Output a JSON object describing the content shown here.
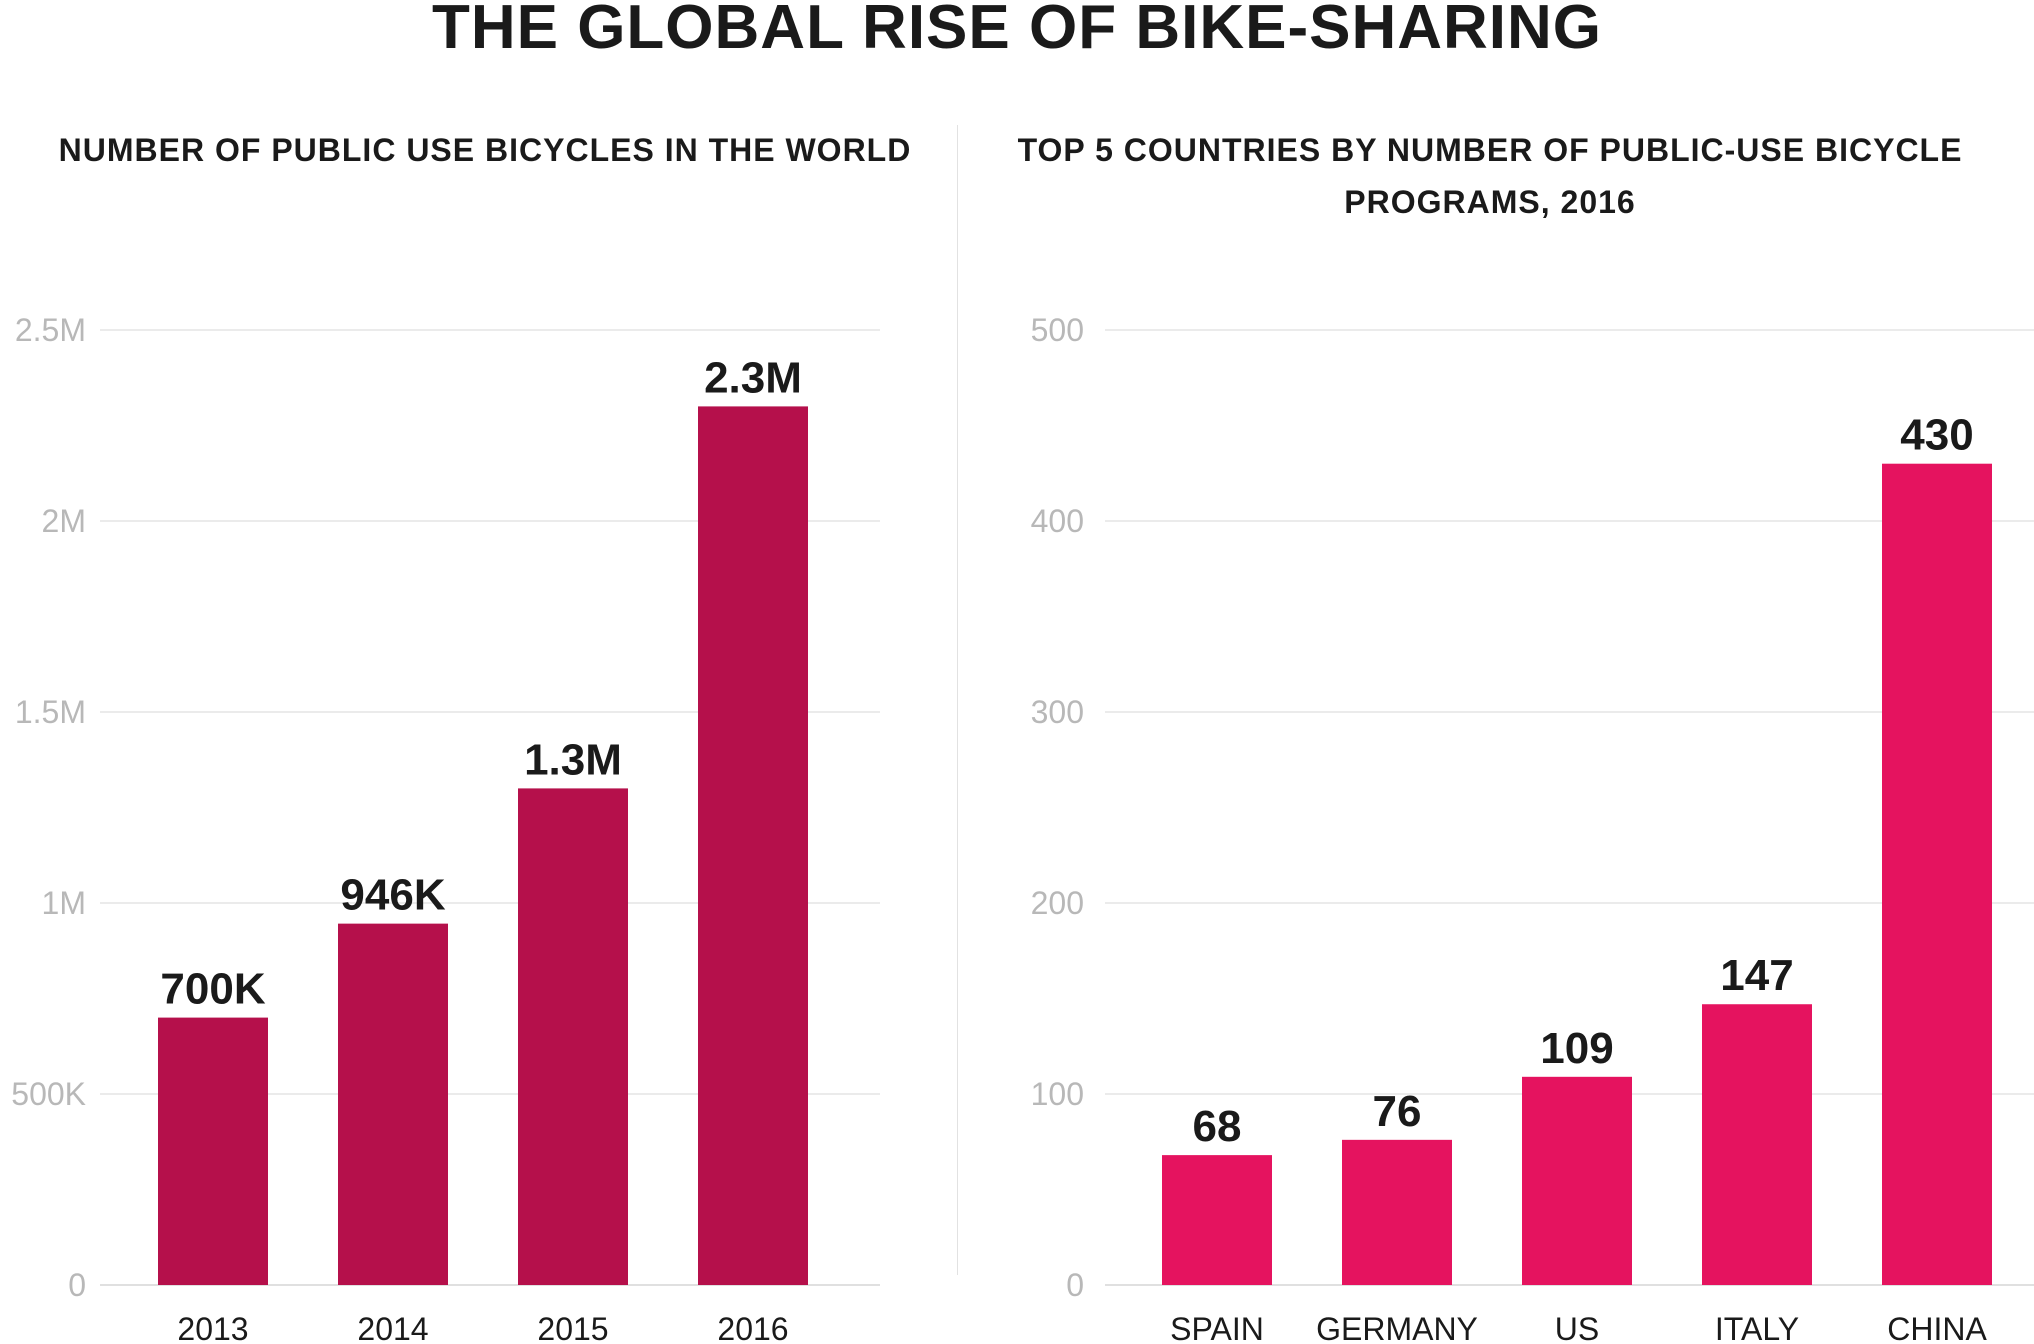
{
  "title": "THE GLOBAL RISE OF BIKE-SHARING",
  "chart_data": [
    {
      "type": "bar",
      "title": "NUMBER OF PUBLIC USE BICYCLES IN THE WORLD",
      "categories": [
        "2013",
        "2014",
        "2015",
        "2016"
      ],
      "values": [
        700000,
        946000,
        1300000,
        2300000
      ],
      "value_labels": [
        "700K",
        "946K",
        "1.3M",
        "2.3M"
      ],
      "ylim": [
        0,
        2500000
      ],
      "yticks": [
        0,
        500000,
        1000000,
        1500000,
        2000000,
        2500000
      ],
      "ytick_labels": [
        "0",
        "500K",
        "1M",
        "1.5M",
        "2M",
        "2.5M"
      ],
      "xlabel": "",
      "ylabel": "",
      "grid": true,
      "color": "#b5104b"
    },
    {
      "type": "bar",
      "title": "TOP 5 COUNTRIES BY NUMBER OF PUBLIC-USE BICYCLE PROGRAMS, 2016",
      "categories": [
        "SPAIN",
        "GERMANY",
        "US",
        "ITALY",
        "CHINA"
      ],
      "values": [
        68,
        76,
        109,
        147,
        430
      ],
      "value_labels": [
        "68",
        "76",
        "109",
        "147",
        "430"
      ],
      "ylim": [
        0,
        500
      ],
      "yticks": [
        0,
        100,
        200,
        300,
        400,
        500
      ],
      "ytick_labels": [
        "0",
        "100",
        "200",
        "300",
        "400",
        "500"
      ],
      "xlabel": "",
      "ylabel": "",
      "grid": true,
      "color": "#e5135f"
    }
  ]
}
